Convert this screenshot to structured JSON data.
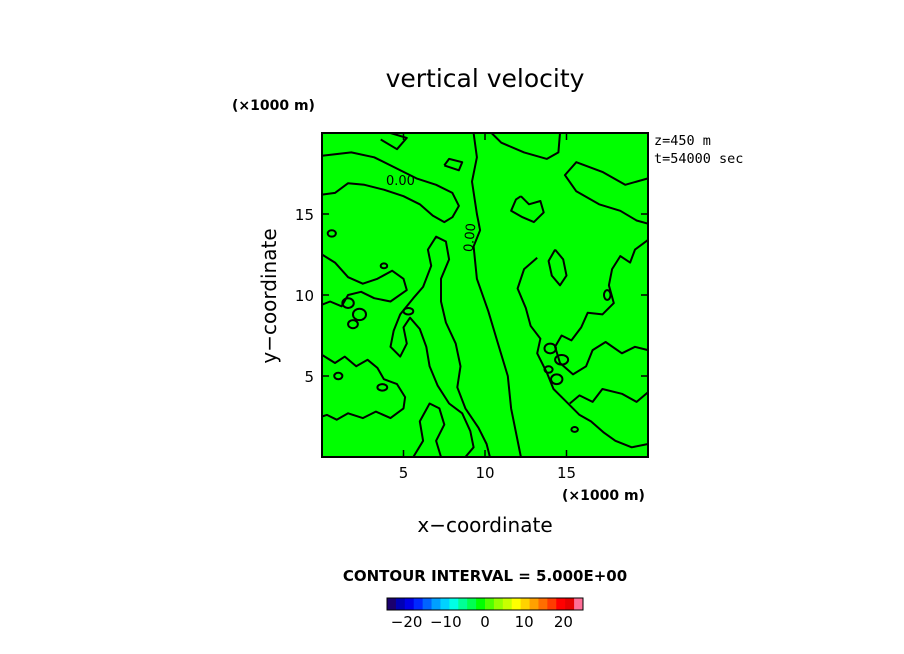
{
  "chart_data": {
    "type": "heatmap",
    "title": "vertical velocity",
    "xlabel": "x−coordinate",
    "ylabel": "y−coordinate",
    "x_unit": "(×1000 m)",
    "y_unit": "(×1000 m)",
    "xlim": [
      0,
      20
    ],
    "ylim": [
      0,
      20
    ],
    "x_ticks": [
      5,
      10,
      15
    ],
    "y_ticks": [
      5,
      10,
      15
    ],
    "x_tick_labels": [
      "5",
      "10",
      "15"
    ],
    "y_tick_labels": [
      "5",
      "10",
      "15"
    ],
    "info_lines": [
      "z=450  m",
      "t=54000  sec"
    ],
    "contour_interval_text": "CONTOUR INTERVAL = 5.000E+00",
    "contour_label": "0.00",
    "field_value_fill": 0,
    "colorbar": {
      "range": [
        -25,
        25
      ],
      "ticks": [
        -20,
        -10,
        0,
        10,
        20
      ],
      "tick_labels": [
        "−20",
        "−10",
        "0",
        "10",
        "20"
      ],
      "colors": [
        "#1a006e",
        "#0000b4",
        "#0000e6",
        "#0028ff",
        "#0064ff",
        "#00a0ff",
        "#00d2ff",
        "#00ffe6",
        "#00ff96",
        "#00ff50",
        "#00ff00",
        "#50ff00",
        "#96ff00",
        "#c8ff00",
        "#ffff00",
        "#ffd200",
        "#ffa000",
        "#ff6e00",
        "#ff3c00",
        "#ff0000",
        "#e60000",
        "#ff6e96"
      ]
    },
    "zero_contours": [
      {
        "closed": false,
        "points": [
          [
            9.3,
            20
          ],
          [
            9.5,
            18.5
          ],
          [
            9.2,
            17
          ],
          [
            9.5,
            15
          ],
          [
            9.7,
            14
          ],
          [
            9.3,
            13
          ],
          [
            9.5,
            11
          ],
          [
            10.2,
            9
          ],
          [
            10.8,
            7
          ],
          [
            11.4,
            5
          ],
          [
            11.6,
            3
          ],
          [
            11.9,
            1.5
          ],
          [
            12.2,
            0
          ]
        ]
      },
      {
        "closed": false,
        "points": [
          [
            0,
            18.6
          ],
          [
            1.8,
            18.8
          ],
          [
            3.2,
            18.5
          ],
          [
            4.6,
            17.8
          ],
          [
            5.8,
            17.2
          ],
          [
            7.0,
            16.8
          ],
          [
            8.0,
            16.3
          ],
          [
            8.4,
            15.5
          ],
          [
            8.0,
            14.8
          ],
          [
            7.5,
            14.5
          ],
          [
            6.8,
            14.9
          ],
          [
            6.0,
            15.6
          ],
          [
            5.0,
            16.1
          ],
          [
            3.8,
            16.5
          ],
          [
            2.6,
            16.8
          ],
          [
            1.6,
            16.9
          ],
          [
            0.8,
            16.3
          ],
          [
            0,
            16.2
          ]
        ]
      },
      {
        "closed": false,
        "points": [
          [
            0,
            12.5
          ],
          [
            0.8,
            12.0
          ],
          [
            1.6,
            11.1
          ],
          [
            2.5,
            10.7
          ],
          [
            3.4,
            11.0
          ],
          [
            4.3,
            11.5
          ],
          [
            5.0,
            11.0
          ],
          [
            5.2,
            10.3
          ],
          [
            4.2,
            9.6
          ],
          [
            3.2,
            9.8
          ],
          [
            2.4,
            10.2
          ],
          [
            1.6,
            10.0
          ],
          [
            1.2,
            9.3
          ],
          [
            0.5,
            9.6
          ],
          [
            0,
            9.4
          ]
        ]
      },
      {
        "closed": false,
        "points": [
          [
            0,
            6.3
          ],
          [
            0.8,
            5.8
          ],
          [
            1.4,
            6.2
          ],
          [
            2.1,
            5.6
          ],
          [
            2.8,
            6.0
          ],
          [
            3.4,
            5.5
          ],
          [
            3.8,
            4.8
          ],
          [
            4.6,
            4.5
          ],
          [
            5.1,
            3.7
          ],
          [
            5.0,
            3.0
          ],
          [
            4.2,
            2.4
          ],
          [
            3.3,
            2.8
          ],
          [
            2.5,
            2.4
          ],
          [
            1.6,
            2.7
          ],
          [
            0.9,
            2.3
          ],
          [
            0.3,
            2.6
          ],
          [
            0,
            2.5
          ]
        ]
      },
      {
        "closed": false,
        "points": [
          [
            5.6,
            0
          ],
          [
            6.2,
            1.0
          ],
          [
            6.0,
            2.2
          ],
          [
            6.6,
            3.3
          ],
          [
            7.2,
            3.0
          ],
          [
            7.5,
            2.0
          ],
          [
            7.0,
            1.0
          ],
          [
            7.3,
            0
          ]
        ]
      },
      {
        "closed": false,
        "points": [
          [
            8.8,
            0
          ],
          [
            9.3,
            0.6
          ],
          [
            9.1,
            1.6
          ],
          [
            8.6,
            2.7
          ],
          [
            7.8,
            3.3
          ],
          [
            7.1,
            4.4
          ],
          [
            6.6,
            5.6
          ],
          [
            6.4,
            6.8
          ],
          [
            6.0,
            7.9
          ],
          [
            5.4,
            8.6
          ],
          [
            5.0,
            8.0
          ],
          [
            5.2,
            7.0
          ],
          [
            4.8,
            6.2
          ],
          [
            4.2,
            6.8
          ],
          [
            4.4,
            7.8
          ],
          [
            4.8,
            8.8
          ],
          [
            5.6,
            9.8
          ],
          [
            6.2,
            10.5
          ],
          [
            6.7,
            11.8
          ],
          [
            6.5,
            12.8
          ],
          [
            7.0,
            13.6
          ],
          [
            7.6,
            13.3
          ],
          [
            7.8,
            12.2
          ],
          [
            7.3,
            11.0
          ],
          [
            7.3,
            9.6
          ],
          [
            7.6,
            8.3
          ],
          [
            8.2,
            7.0
          ],
          [
            8.5,
            5.6
          ],
          [
            8.3,
            4.3
          ],
          [
            8.8,
            3.0
          ],
          [
            9.6,
            1.8
          ],
          [
            10.1,
            0.8
          ],
          [
            10.3,
            0
          ]
        ]
      },
      {
        "closed": false,
        "points": [
          [
            14.6,
            20
          ],
          [
            14.5,
            18.8
          ],
          [
            13.8,
            18.4
          ],
          [
            12.4,
            18.8
          ],
          [
            11.0,
            19.4
          ],
          [
            10.4,
            20
          ]
        ]
      },
      {
        "closed": false,
        "points": [
          [
            20,
            17.2
          ],
          [
            18.6,
            16.8
          ],
          [
            17.2,
            17.6
          ],
          [
            15.6,
            18.2
          ],
          [
            14.9,
            17.4
          ],
          [
            15.6,
            16.4
          ],
          [
            17.0,
            15.6
          ],
          [
            18.3,
            15.2
          ],
          [
            19.3,
            14.6
          ],
          [
            20,
            14.4
          ]
        ]
      },
      {
        "closed": false,
        "points": [
          [
            12.2,
            16.1
          ],
          [
            12.7,
            15.6
          ],
          [
            13.4,
            15.8
          ],
          [
            13.6,
            15.1
          ],
          [
            13.0,
            14.5
          ],
          [
            12.3,
            14.8
          ],
          [
            11.6,
            15.2
          ],
          [
            11.9,
            15.9
          ],
          [
            12.2,
            16.1
          ]
        ]
      },
      {
        "closed": false,
        "points": [
          [
            20,
            13.4
          ],
          [
            19.2,
            12.8
          ],
          [
            18.9,
            12.0
          ],
          [
            18.3,
            12.4
          ],
          [
            17.8,
            11.6
          ],
          [
            17.6,
            10.6
          ],
          [
            17.9,
            9.5
          ],
          [
            17.2,
            8.8
          ],
          [
            16.3,
            8.9
          ],
          [
            15.9,
            8.0
          ],
          [
            15.3,
            7.2
          ],
          [
            14.7,
            7.5
          ],
          [
            14.3,
            6.8
          ],
          [
            14.6,
            5.8
          ],
          [
            15.4,
            5.1
          ],
          [
            16.2,
            5.6
          ],
          [
            16.6,
            6.6
          ],
          [
            17.4,
            7.1
          ],
          [
            18.4,
            6.4
          ],
          [
            19.2,
            6.8
          ],
          [
            20,
            6.6
          ]
        ]
      },
      {
        "closed": false,
        "points": [
          [
            13.2,
            12.3
          ],
          [
            12.4,
            11.6
          ],
          [
            12.0,
            10.4
          ],
          [
            12.5,
            9.2
          ],
          [
            12.8,
            8.1
          ],
          [
            13.4,
            7.3
          ],
          [
            13.2,
            6.4
          ],
          [
            13.8,
            5.2
          ],
          [
            14.2,
            4.2
          ],
          [
            14.9,
            3.5
          ],
          [
            15.8,
            2.6
          ],
          [
            16.5,
            2.2
          ],
          [
            17.3,
            1.5
          ],
          [
            18.0,
            1.0
          ],
          [
            19.0,
            0.6
          ],
          [
            20,
            0.8
          ]
        ]
      },
      {
        "closed": false,
        "points": [
          [
            20,
            4.0
          ],
          [
            19.3,
            3.4
          ],
          [
            18.4,
            3.9
          ],
          [
            17.2,
            4.2
          ],
          [
            16.6,
            3.4
          ],
          [
            15.8,
            3.8
          ],
          [
            15.2,
            3.3
          ]
        ]
      },
      {
        "closed": false,
        "points": [
          [
            14.3,
            12.8
          ],
          [
            13.9,
            12.1
          ],
          [
            14.1,
            11.2
          ],
          [
            14.6,
            10.6
          ],
          [
            15.0,
            11.2
          ],
          [
            14.8,
            12.2
          ],
          [
            14.3,
            12.8
          ]
        ]
      },
      {
        "closed": false,
        "points": [
          [
            3.6,
            19.6
          ],
          [
            4.6,
            19.0
          ],
          [
            5.2,
            19.7
          ],
          [
            4.2,
            20
          ]
        ]
      },
      {
        "closed": false,
        "points": [
          [
            7.5,
            18.0
          ],
          [
            8.4,
            17.7
          ],
          [
            8.6,
            18.2
          ],
          [
            7.8,
            18.4
          ],
          [
            7.5,
            18.0
          ]
        ]
      }
    ],
    "small_rings": [
      {
        "c": [
          1.6,
          9.5
        ],
        "r": [
          0.35,
          0.3
        ]
      },
      {
        "c": [
          2.3,
          8.8
        ],
        "r": [
          0.4,
          0.35
        ]
      },
      {
        "c": [
          1.9,
          8.2
        ],
        "r": [
          0.3,
          0.25
        ]
      },
      {
        "c": [
          0.6,
          13.8
        ],
        "r": [
          0.25,
          0.2
        ]
      },
      {
        "c": [
          5.3,
          9.0
        ],
        "r": [
          0.3,
          0.2
        ]
      },
      {
        "c": [
          3.8,
          11.8
        ],
        "r": [
          0.2,
          0.15
        ]
      },
      {
        "c": [
          14.0,
          6.7
        ],
        "r": [
          0.35,
          0.3
        ]
      },
      {
        "c": [
          14.7,
          6.0
        ],
        "r": [
          0.4,
          0.3
        ]
      },
      {
        "c": [
          13.9,
          5.4
        ],
        "r": [
          0.25,
          0.2
        ]
      },
      {
        "c": [
          14.4,
          4.8
        ],
        "r": [
          0.35,
          0.3
        ]
      },
      {
        "c": [
          1.0,
          5.0
        ],
        "r": [
          0.25,
          0.2
        ]
      },
      {
        "c": [
          3.7,
          4.3
        ],
        "r": [
          0.3,
          0.2
        ]
      },
      {
        "c": [
          17.5,
          10.0
        ],
        "r": [
          0.2,
          0.3
        ]
      },
      {
        "c": [
          15.5,
          1.7
        ],
        "r": [
          0.2,
          0.15
        ]
      }
    ]
  }
}
